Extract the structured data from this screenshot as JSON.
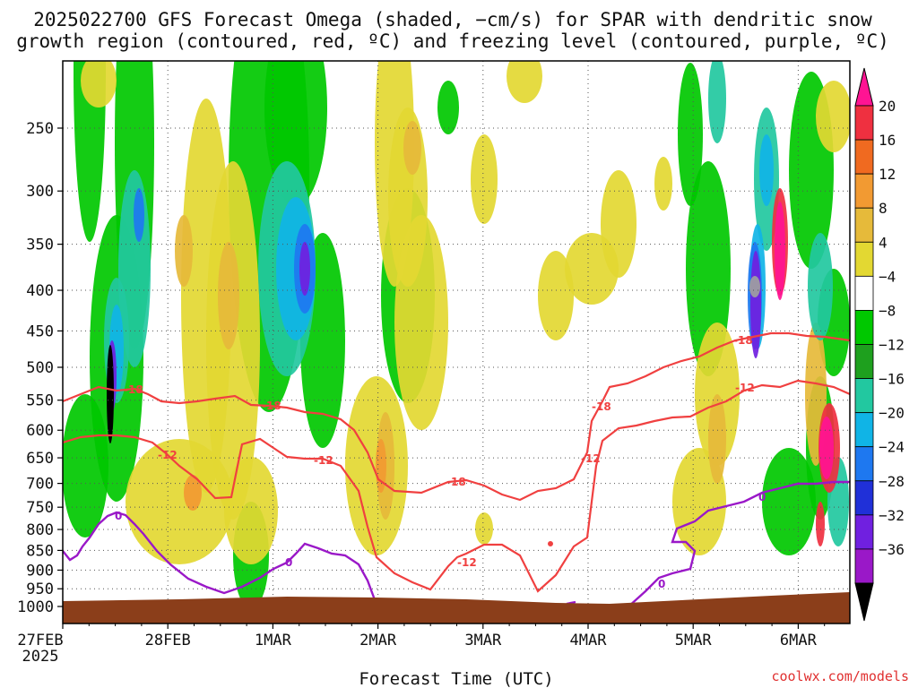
{
  "title_lines": [
    "2025022700 GFS Forecast Omega (shaded, −cm/s) for SPAR with dendritic snow",
    "growth region (contoured, red, ºC) and freezing level (contoured, purple, ºC)"
  ],
  "credit": "coolwx.com/models",
  "chart_data": {
    "type": "heatmap",
    "title": "2025022700 GFS Forecast Omega (shaded, −cm/s) for SPAR with dendritic snow growth region (contoured, red, ºC) and freezing level (contoured, purple, ºC)",
    "xlabel": "Forecast Time (UTC)",
    "x_ticks": [
      "27FEB",
      "28FEB",
      "1MAR",
      "2MAR",
      "3MAR",
      "4MAR",
      "5MAR",
      "6MAR"
    ],
    "x_tick_sub": "2025",
    "y_ticks": [
      250,
      300,
      350,
      400,
      450,
      500,
      550,
      600,
      650,
      700,
      750,
      800,
      850,
      900,
      950,
      1000
    ],
    "y_axis": "pressure (hPa), log scale, inverted",
    "ylim": [
      1000,
      200
    ],
    "grid": true,
    "colorbar": {
      "labels": [
        "20",
        "16",
        "12",
        "8",
        "4",
        "−4",
        "−8",
        "−12",
        "−16",
        "−20",
        "−24",
        "−28",
        "−32",
        "−36"
      ],
      "colors": [
        "#ff1493",
        "#ef3040",
        "#f06a20",
        "#f29a32",
        "#e6ba3a",
        "#e3d832",
        "#ffffff",
        "#00c800",
        "#1ea01e",
        "#22c8a0",
        "#10b4e6",
        "#1e78f0",
        "#2030d8",
        "#7020e0",
        "#9a18c8",
        "#a0a0a0",
        "#000000"
      ]
    },
    "contour_labels_red": [
      "-18",
      "-12",
      "-12",
      "-18",
      "-12",
      "-18",
      "-12",
      "-18",
      "-12"
    ],
    "contour_labels_purple": [
      "0",
      "0",
      "0",
      "0"
    ]
  }
}
